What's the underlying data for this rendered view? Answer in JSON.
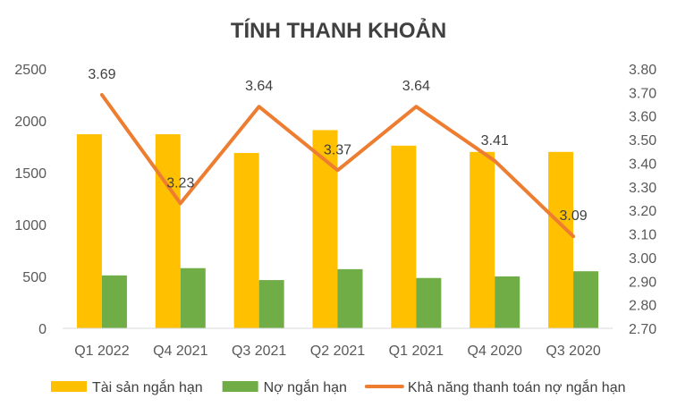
{
  "chart_data": {
    "type": "bar",
    "title": "TÍNH THANH KHOẢN",
    "categories": [
      "Q1 2022",
      "Q4 2021",
      "Q3 2021",
      "Q2 2021",
      "Q1 2021",
      "Q4 2020",
      "Q3 2020"
    ],
    "series": [
      {
        "name": "Tài sản ngắn hạn",
        "type": "bar",
        "axis": "left",
        "color": "#FFC000",
        "values": [
          1870,
          1870,
          1690,
          1910,
          1760,
          1700,
          1700
        ]
      },
      {
        "name": "Nợ ngắn hạn",
        "type": "bar",
        "axis": "left",
        "color": "#70AD47",
        "values": [
          510,
          580,
          465,
          570,
          485,
          500,
          550
        ]
      },
      {
        "name": "Khả năng thanh toán nợ ngắn hạn",
        "type": "line",
        "axis": "right",
        "color": "#ED7D31",
        "values": [
          3.69,
          3.23,
          3.64,
          3.37,
          3.64,
          3.41,
          3.09
        ],
        "labels": [
          "3.69",
          "3.23",
          "3.64",
          "3.37",
          "3.64",
          "3.41",
          "3.09"
        ]
      }
    ],
    "y_left": {
      "ylim": [
        0,
        2500
      ],
      "ticks": [
        "0",
        "500",
        "1000",
        "1500",
        "2000",
        "2500"
      ]
    },
    "y_right": {
      "ylim": [
        2.7,
        3.8
      ],
      "ticks": [
        "2.70",
        "2.80",
        "2.90",
        "3.00",
        "3.10",
        "3.20",
        "3.30",
        "3.40",
        "3.50",
        "3.60",
        "3.70",
        "3.80"
      ]
    },
    "grid": false,
    "legend_position": "bottom"
  }
}
